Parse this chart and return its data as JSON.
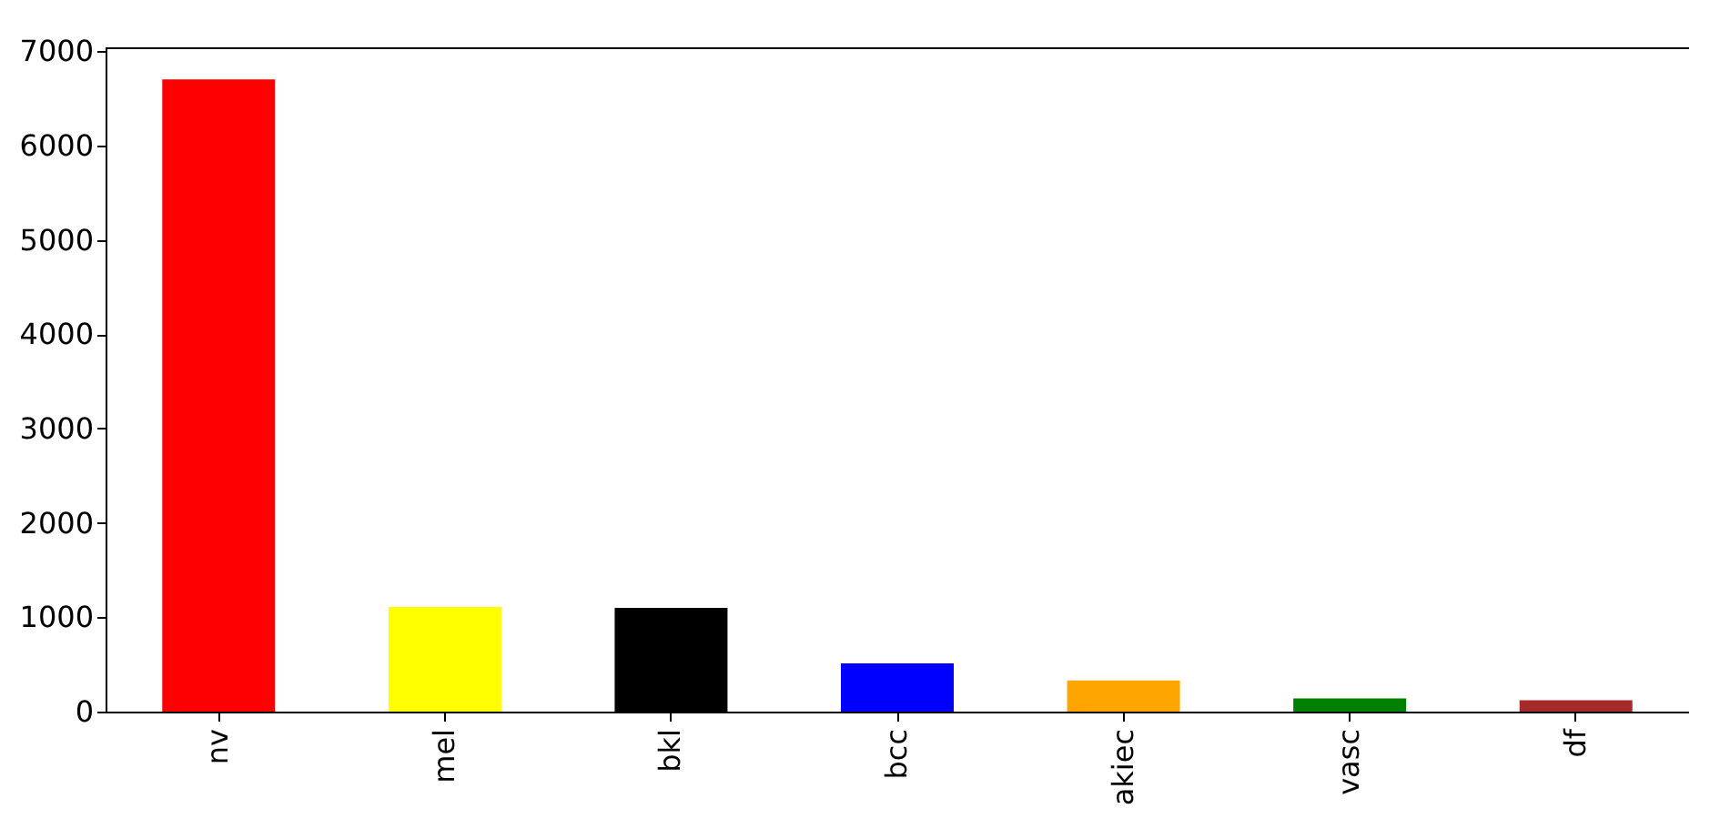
{
  "chart_data": {
    "type": "bar",
    "categories": [
      "nv",
      "mel",
      "bkl",
      "bcc",
      "akiec",
      "vasc",
      "df"
    ],
    "values": [
      6700,
      1110,
      1100,
      510,
      330,
      140,
      120
    ],
    "colors": [
      "#ff0000",
      "#ffff00",
      "#000000",
      "#0000ff",
      "#ffa500",
      "#008000",
      "#a52a2a"
    ],
    "ylim": [
      0,
      7040
    ],
    "yticks": [
      0,
      1000,
      2000,
      3000,
      4000,
      5000,
      6000,
      7000
    ],
    "grid": false
  }
}
